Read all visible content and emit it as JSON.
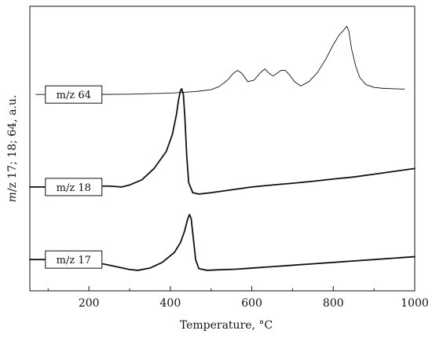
{
  "chart_data": {
    "type": "line",
    "xlabel": "Temperature, °C",
    "ylabel": "m/z 17; 18; 64, a.u.",
    "ylabel_parts": {
      "italic": "m",
      "rest": "/z 17; 18; 64, a.u."
    },
    "xlim": [
      55,
      1000
    ],
    "ylim": [
      0,
      1
    ],
    "x_ticks": [
      200,
      400,
      600,
      800,
      1000
    ],
    "x_minor_ticks": [
      100,
      300,
      500,
      700,
      900
    ],
    "grid": false,
    "series": [
      {
        "name": "m/z 64",
        "label_x": 70,
        "stroke_width": 0.9,
        "x": [
          70,
          200,
          300,
          400,
          460,
          500,
          520,
          540,
          555,
          565,
          575,
          590,
          605,
          620,
          632,
          642,
          652,
          662,
          672,
          682,
          692,
          705,
          720,
          740,
          760,
          780,
          800,
          815,
          825,
          833,
          838,
          845,
          855,
          865,
          880,
          900,
          920,
          950,
          975
        ],
        "y": [
          0.69,
          0.69,
          0.691,
          0.695,
          0.7,
          0.707,
          0.718,
          0.74,
          0.765,
          0.775,
          0.765,
          0.735,
          0.74,
          0.765,
          0.78,
          0.765,
          0.755,
          0.765,
          0.775,
          0.775,
          0.76,
          0.735,
          0.72,
          0.735,
          0.765,
          0.81,
          0.865,
          0.9,
          0.915,
          0.93,
          0.915,
          0.85,
          0.79,
          0.75,
          0.725,
          0.715,
          0.712,
          0.71,
          0.709
        ]
      },
      {
        "name": "m/z 18",
        "label_x": 70,
        "stroke_width": 1.8,
        "x": [
          55,
          100,
          150,
          200,
          250,
          280,
          300,
          330,
          360,
          390,
          405,
          415,
          420,
          425,
          428,
          432,
          436,
          440,
          445,
          455,
          470,
          500,
          550,
          600,
          650,
          700,
          750,
          800,
          850,
          900,
          950,
          1000
        ],
        "y": [
          0.365,
          0.365,
          0.366,
          0.368,
          0.368,
          0.365,
          0.372,
          0.39,
          0.43,
          0.49,
          0.55,
          0.62,
          0.67,
          0.705,
          0.71,
          0.69,
          0.6,
          0.48,
          0.38,
          0.345,
          0.34,
          0.345,
          0.355,
          0.365,
          0.372,
          0.378,
          0.385,
          0.393,
          0.4,
          0.41,
          0.42,
          0.43
        ]
      },
      {
        "name": "m/z 17",
        "label_x": 70,
        "stroke_width": 1.8,
        "x": [
          55,
          100,
          150,
          200,
          250,
          300,
          320,
          350,
          380,
          410,
          425,
          435,
          442,
          447,
          451,
          456,
          462,
          470,
          490,
          520,
          560,
          600,
          650,
          700,
          750,
          800,
          850,
          900,
          950,
          1000
        ],
        "y": [
          0.11,
          0.11,
          0.109,
          0.105,
          0.09,
          0.075,
          0.072,
          0.08,
          0.1,
          0.135,
          0.17,
          0.21,
          0.25,
          0.268,
          0.255,
          0.19,
          0.11,
          0.078,
          0.072,
          0.074,
          0.076,
          0.08,
          0.085,
          0.09,
          0.095,
          0.1,
          0.105,
          0.11,
          0.115,
          0.12
        ]
      }
    ]
  }
}
